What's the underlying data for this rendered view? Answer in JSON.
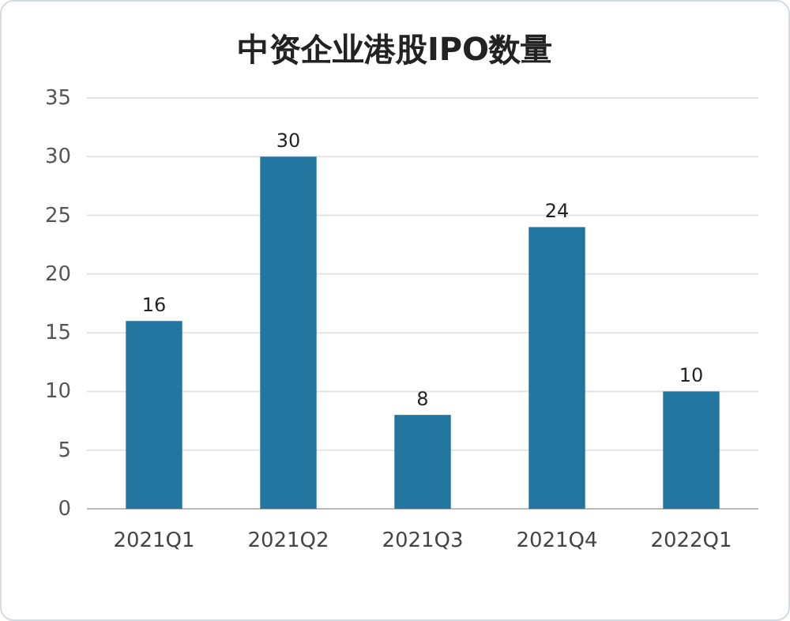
{
  "chart_data": {
    "type": "bar",
    "title": "中资企业港股IPO数量",
    "categories": [
      "2021Q1",
      "2021Q2",
      "2021Q3",
      "2021Q4",
      "2022Q1"
    ],
    "values": [
      16,
      30,
      8,
      24,
      10
    ],
    "color": "#23769f",
    "ylim": [
      0,
      35
    ],
    "yticks": [
      0,
      5,
      10,
      15,
      20,
      25,
      30,
      35
    ],
    "grid": "y",
    "data_labels": true
  }
}
